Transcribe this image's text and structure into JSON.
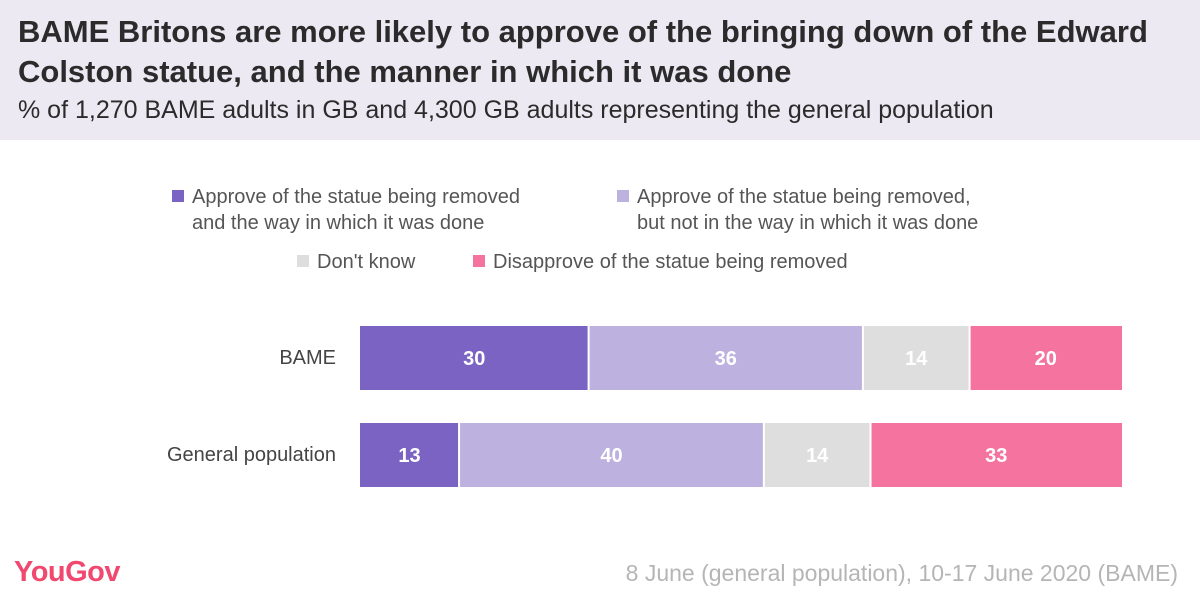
{
  "header": {
    "title": "BAME Britons are more likely to approve of the bringing down of the Edward Colston statue, and the manner in which it was done",
    "subtitle": "% of 1,270 BAME adults in GB and 4,300 GB adults representing the general population"
  },
  "chart_data": {
    "type": "bar",
    "stacked": true,
    "orientation": "horizontal",
    "categories": [
      "BAME",
      "General population"
    ],
    "series": [
      {
        "name": "Approve of the statue being removed\nand the way in which it was done",
        "color": "#7b63c4",
        "values": [
          30,
          13
        ]
      },
      {
        "name": "Approve of the statue being removed,\nbut not in the way in which it was done",
        "color": "#bdb1df",
        "values": [
          36,
          40
        ]
      },
      {
        "name": "Don't know",
        "color": "#dedede",
        "values": [
          14,
          14
        ]
      },
      {
        "name": "Disapprove of the statue being removed",
        "color": "#f4739f",
        "values": [
          20,
          33
        ]
      }
    ],
    "xlim": [
      0,
      100
    ],
    "legend_position": "top"
  },
  "footer": {
    "logo": "YouGov",
    "note": "8 June (general population), 10-17 June 2020 (BAME)"
  }
}
